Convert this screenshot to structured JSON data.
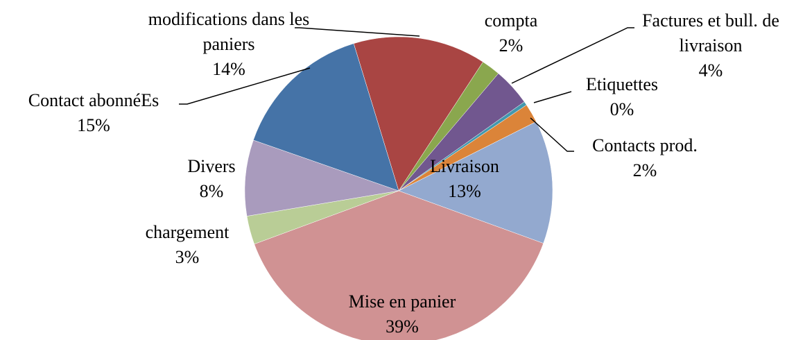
{
  "chart_data": {
    "type": "pie",
    "categories": [
      "modifications dans les paniers",
      "compta",
      "Factures et bull. de livraison",
      "Etiquettes",
      "Contacts prod.",
      "Livraison",
      "Mise en panier",
      "chargement",
      "Divers",
      "Contact abonnéEs"
    ],
    "values": [
      14,
      2,
      4,
      0.4,
      2,
      13,
      39,
      3,
      8,
      15
    ],
    "value_labels": [
      "14%",
      "2%",
      "4%",
      "0%",
      "2%",
      "13%",
      "39%",
      "3%",
      "8%",
      "15%"
    ],
    "colors": [
      "#a94543",
      "#8aa74e",
      "#71578f",
      "#4298ae",
      "#db8439",
      "#93a9cf",
      "#d09293",
      "#b9cd96",
      "#a99bbd",
      "#4573a7"
    ]
  }
}
